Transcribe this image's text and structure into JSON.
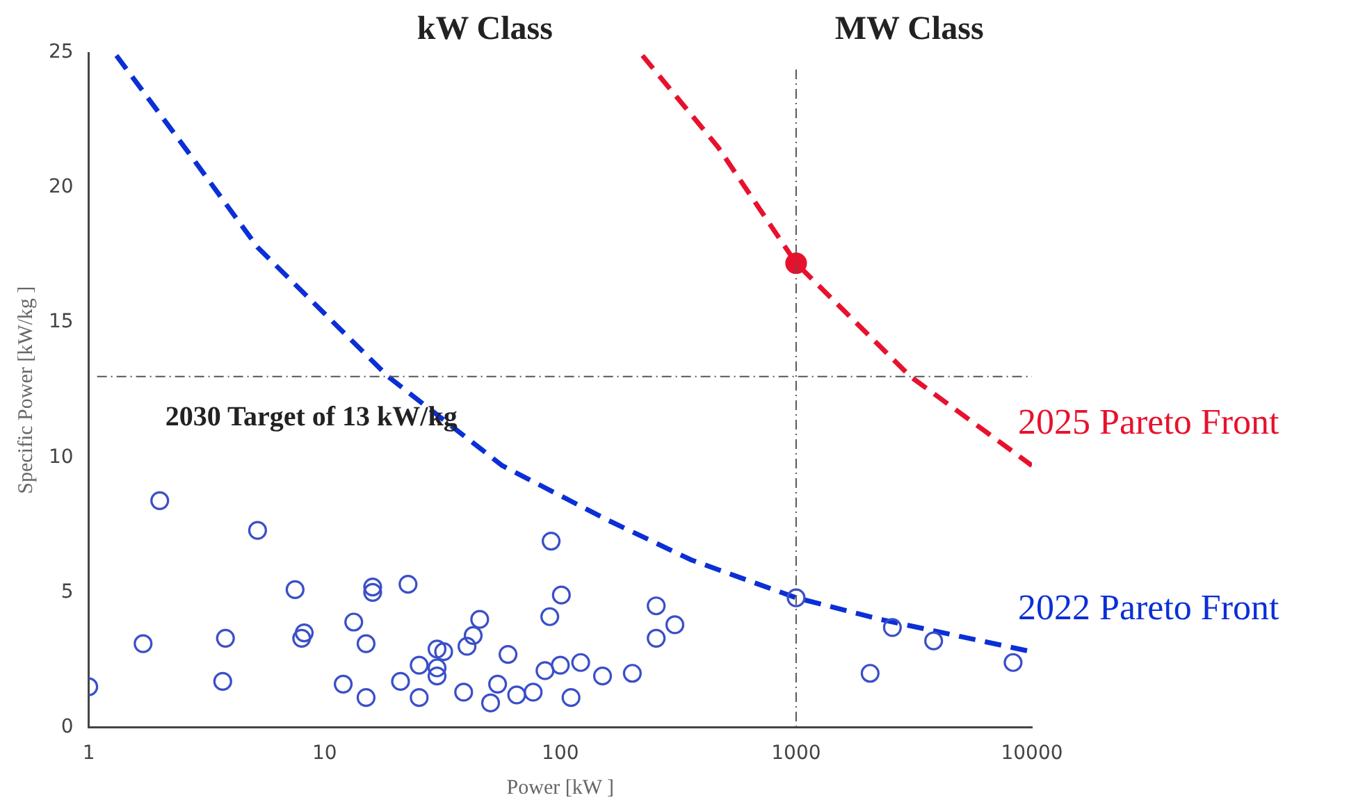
{
  "chart_data": {
    "type": "scatter",
    "xlabel": "Power [kW ]",
    "ylabel": "Specific Power [kW/kg ]",
    "annotations": [
      "kW Class",
      "MW Class"
    ],
    "log": "x",
    "xlim": [
      1,
      10000
    ],
    "xticks": [
      1,
      10,
      100,
      1000,
      10000
    ],
    "ylim": [
      0,
      25
    ],
    "yticks": [
      0,
      5,
      10,
      15,
      20,
      25
    ],
    "grid": false,
    "legend": false,
    "marker": "circle",
    "ref_lines": [
      {
        "axis": "y",
        "value": 13,
        "label": "2030 Target of 13 kW/kg",
        "color": "#555555",
        "line_style": "dashdot"
      },
      {
        "axis": "x",
        "value": 1000,
        "color": "#555555",
        "line_style": "dashdot"
      }
    ],
    "series": [
      {
        "color": "#3a4fc8",
        "x": [
          1,
          1.7,
          2,
          3.7,
          3.8,
          5.2,
          7.5,
          8,
          8.2,
          12,
          13.3,
          15,
          15,
          16,
          16,
          22.6,
          21,
          25.2,
          25.2,
          30,
          32,
          30,
          30,
          38.9,
          40.2,
          42.7,
          45.5,
          50.6,
          54.2,
          60,
          65.3,
          76.7,
          86.1,
          90.2,
          91.4,
          100,
          101,
          111,
          122,
          151,
          202,
          255,
          255,
          306,
          1000,
          2060,
          2560,
          3830,
          8320
        ],
        "values": [
          1.5,
          3.1,
          8.4,
          1.7,
          3.3,
          7.3,
          5.1,
          3.3,
          3.5,
          1.6,
          3.9,
          3.1,
          1.1,
          5.2,
          5,
          5.3,
          1.7,
          2.3,
          1.1,
          2.9,
          2.8,
          2.2,
          1.9,
          1.3,
          3,
          3.4,
          4,
          0.9,
          1.6,
          2.7,
          1.2,
          1.3,
          2.1,
          4.1,
          6.9,
          2.3,
          4.9,
          1.1,
          2.4,
          1.9,
          2,
          3.3,
          4.5,
          3.8,
          4.8,
          2,
          3.7,
          3.2,
          2.4
        ]
      },
      {
        "type": "line",
        "name": "2022 Pareto Front",
        "color": "#0b2fd6",
        "marker": "none",
        "line_style": "dashed",
        "x": [
          1.31,
          2.65,
          5.19,
          18.6,
          56.7,
          157,
          360,
          1000,
          2274,
          10000
        ],
        "values": [
          24.9,
          21.3,
          17.8,
          13,
          9.7,
          7.7,
          6.2,
          4.8,
          4,
          2.8
        ]
      },
      {
        "type": "line",
        "name": "2025 Pareto Front",
        "color": "#e8112d",
        "marker": "none",
        "line_style": "dashed",
        "x": [
          223,
          467,
          1000,
          3055,
          10000
        ],
        "values": [
          24.9,
          21.5,
          17.2,
          13,
          9.7
        ]
      },
      {
        "color": "#e8112d",
        "x": [
          1000
        ],
        "values": [
          17.2
        ]
      }
    ]
  }
}
